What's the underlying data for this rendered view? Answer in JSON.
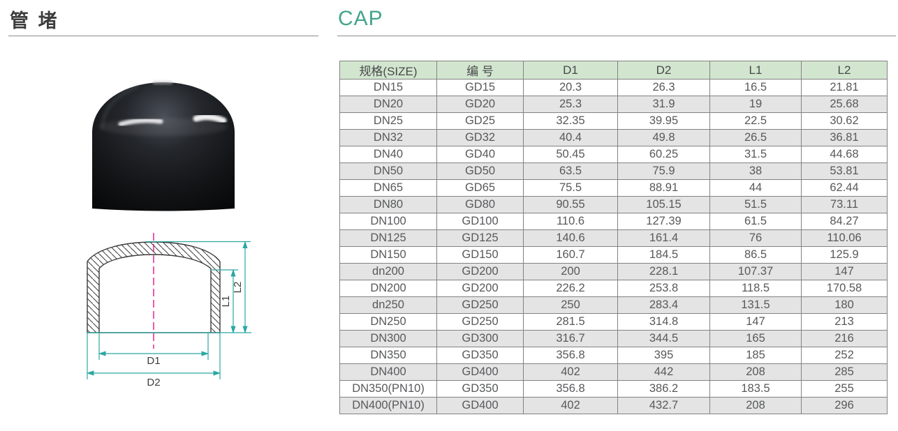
{
  "page": {
    "title_cn": "管 堵",
    "title_en": "CAP"
  },
  "colors": {
    "accent_teal": "#42a48c",
    "table_header_green": "#d2e6cf",
    "table_row_alt_gray": "#e4e4e4",
    "table_border": "#828282",
    "dimension_line_teal": "#2ba8a3",
    "centerline_magenta": "#e4007f",
    "cap_photo_black": "#101214"
  },
  "diagram": {
    "labels": {
      "d1": "D1",
      "d2": "D2",
      "l1": "L1",
      "l2": "L2"
    }
  },
  "table": {
    "columns": [
      "规格(SIZE)",
      "编 号",
      "D1",
      "D2",
      "L1",
      "L2"
    ],
    "rows": [
      [
        "DN15",
        "GD15",
        "20.3",
        "26.3",
        "16.5",
        "21.81"
      ],
      [
        "DN20",
        "GD20",
        "25.3",
        "31.9",
        "19",
        "25.68"
      ],
      [
        "DN25",
        "GD25",
        "32.35",
        "39.95",
        "22.5",
        "30.62"
      ],
      [
        "DN32",
        "GD32",
        "40.4",
        "49.8",
        "26.5",
        "36.81"
      ],
      [
        "DN40",
        "GD40",
        "50.45",
        "60.25",
        "31.5",
        "44.68"
      ],
      [
        "DN50",
        "GD50",
        "63.5",
        "75.9",
        "38",
        "53.81"
      ],
      [
        "DN65",
        "GD65",
        "75.5",
        "88.91",
        "44",
        "62.44"
      ],
      [
        "DN80",
        "GD80",
        "90.55",
        "105.15",
        "51.5",
        "73.11"
      ],
      [
        "DN100",
        "GD100",
        "110.6",
        "127.39",
        "61.5",
        "84.27"
      ],
      [
        "DN125",
        "GD125",
        "140.6",
        "161.4",
        "76",
        "110.06"
      ],
      [
        "DN150",
        "GD150",
        "160.7",
        "184.5",
        "86.5",
        "125.9"
      ],
      [
        "dn200",
        "GD200",
        "200",
        "228.1",
        "107.37",
        "147"
      ],
      [
        "DN200",
        "GD200",
        "226.2",
        "253.8",
        "118.5",
        "170.58"
      ],
      [
        "dn250",
        "GD250",
        "250",
        "283.4",
        "131.5",
        "180"
      ],
      [
        "DN250",
        "GD250",
        "281.5",
        "314.8",
        "147",
        "213"
      ],
      [
        "DN300",
        "GD300",
        "316.7",
        "344.5",
        "165",
        "216"
      ],
      [
        "DN350",
        "GD350",
        "356.8",
        "395",
        "185",
        "252"
      ],
      [
        "DN400",
        "GD400",
        "402",
        "442",
        "208",
        "285"
      ],
      [
        "DN350(PN10)",
        "GD350",
        "356.8",
        "386.2",
        "183.5",
        "255"
      ],
      [
        "DN400(PN10)",
        "GD400",
        "402",
        "432.7",
        "208",
        "296"
      ]
    ]
  }
}
